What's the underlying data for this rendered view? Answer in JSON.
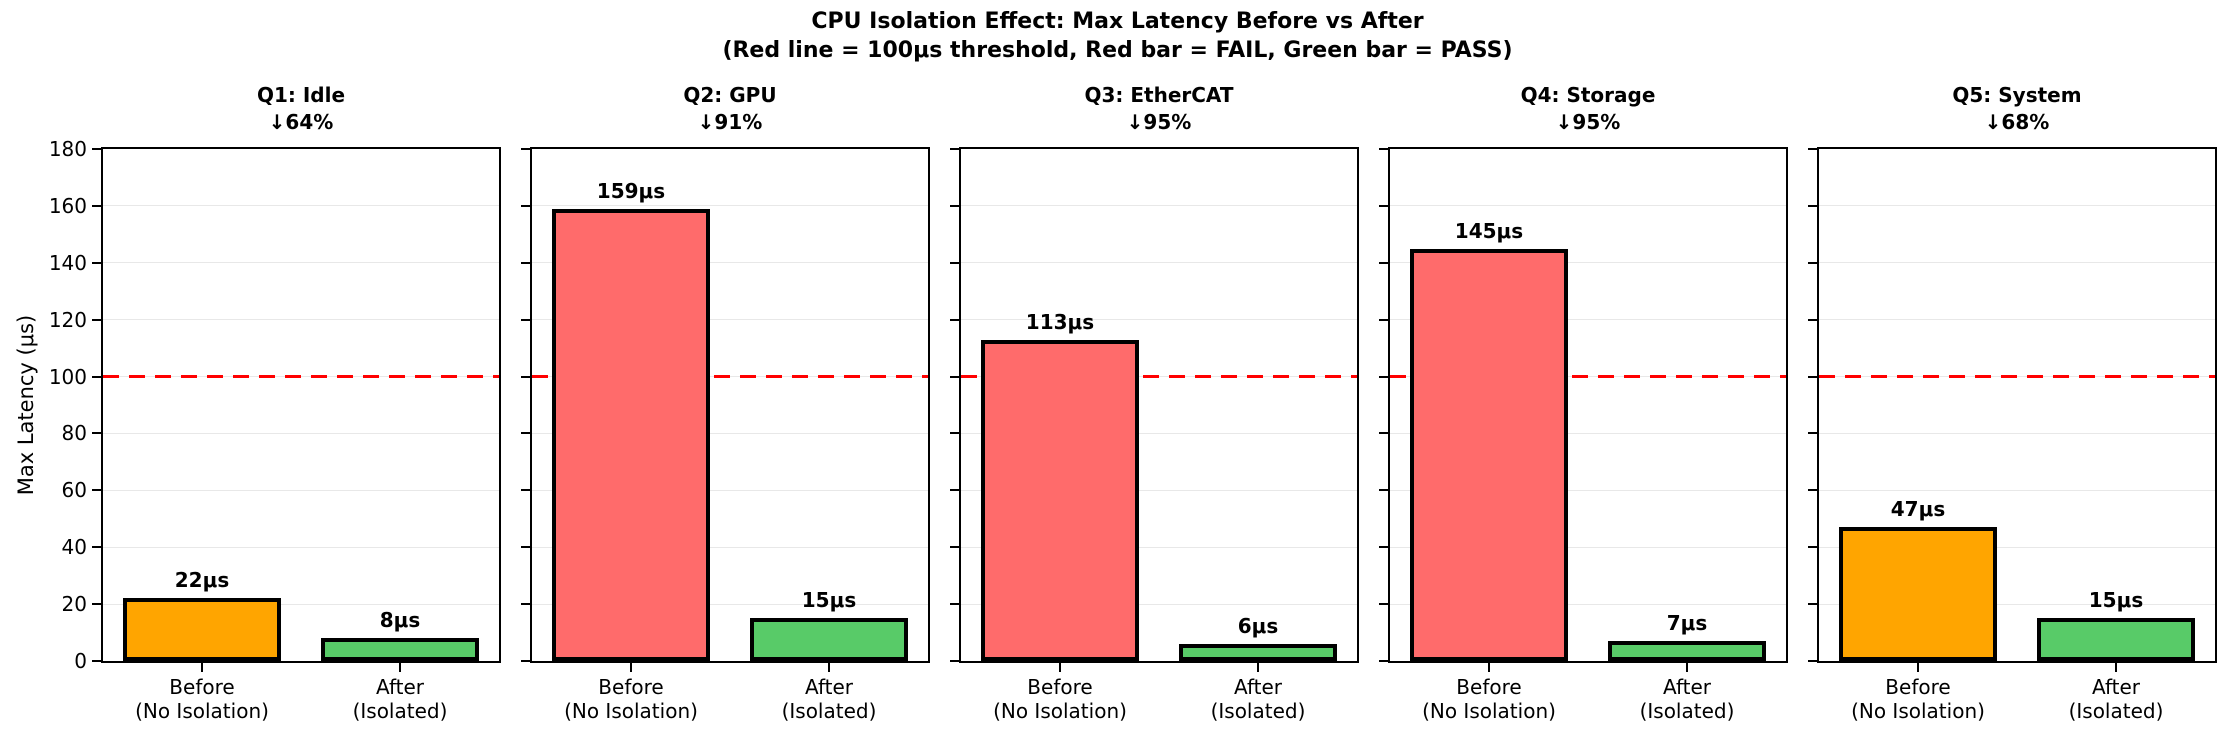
{
  "figure": {
    "title_line1": "CPU Isolation Effect: Max Latency Before vs After",
    "title_line2": "(Red line = 100μs threshold, Red bar = FAIL, Green bar = PASS)"
  },
  "colors": {
    "fail_red": "#ff6b6b",
    "warn_orange": "#ffa500",
    "pass_green": "#58cb68",
    "threshold_red": "#ff0000",
    "bar_edge": "#000000",
    "grid": "#e8e8e8"
  },
  "chart_data": {
    "type": "bar",
    "ylabel": "Max Latency (μs)",
    "ylim": [
      0,
      180
    ],
    "yticks": [
      0,
      20,
      40,
      60,
      80,
      100,
      120,
      140,
      160,
      180
    ],
    "grid": "horizontal",
    "threshold": {
      "value": 100
    },
    "categories": [
      [
        "Before",
        "(No Isolation)"
      ],
      [
        "After",
        "(Isolated)"
      ]
    ],
    "panels": [
      {
        "title": "Q1: Idle",
        "reduction": "↓64%",
        "bars": [
          {
            "value": 22,
            "label": "22μs",
            "color": "warn_orange"
          },
          {
            "value": 8,
            "label": "8μs",
            "color": "pass_green"
          }
        ]
      },
      {
        "title": "Q2: GPU",
        "reduction": "↓91%",
        "bars": [
          {
            "value": 159,
            "label": "159μs",
            "color": "fail_red"
          },
          {
            "value": 15,
            "label": "15μs",
            "color": "pass_green"
          }
        ]
      },
      {
        "title": "Q3: EtherCAT",
        "reduction": "↓95%",
        "bars": [
          {
            "value": 113,
            "label": "113μs",
            "color": "fail_red"
          },
          {
            "value": 6,
            "label": "6μs",
            "color": "pass_green"
          }
        ]
      },
      {
        "title": "Q4: Storage",
        "reduction": "↓95%",
        "bars": [
          {
            "value": 145,
            "label": "145μs",
            "color": "fail_red"
          },
          {
            "value": 7,
            "label": "7μs",
            "color": "pass_green"
          }
        ]
      },
      {
        "title": "Q5: System",
        "reduction": "↓68%",
        "bars": [
          {
            "value": 47,
            "label": "47μs",
            "color": "warn_orange"
          },
          {
            "value": 15,
            "label": "15μs",
            "color": "pass_green"
          }
        ]
      }
    ]
  }
}
